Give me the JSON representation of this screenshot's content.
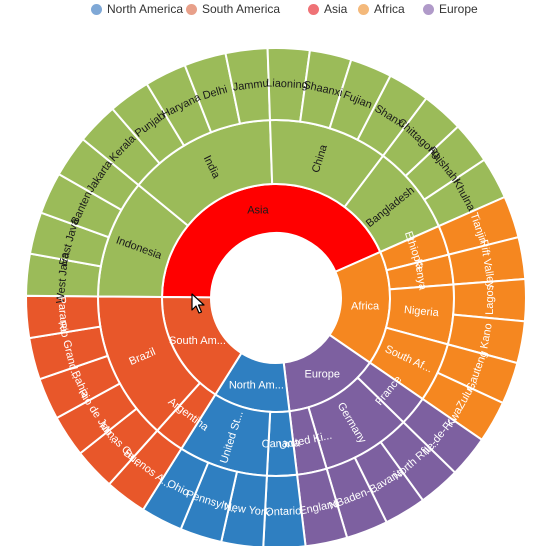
{
  "legend": [
    {
      "label": "North America",
      "color": "#7fa8d6"
    },
    {
      "label": "South America",
      "color": "#e8a08a"
    },
    {
      "label": "Asia",
      "color": "#ef7276"
    },
    {
      "label": "Africa",
      "color": "#f4b97b"
    },
    {
      "label": "Europe",
      "color": "#b09ac9"
    }
  ],
  "chart_data": {
    "type": "sunburst",
    "series": [
      {
        "name": "Asia",
        "color": "#ff0000",
        "display": "Asia",
        "children": [
          {
            "name": "Indonesia",
            "color": "#9bbb59",
            "display": "Indonesia",
            "children": [
              {
                "name": "West Java",
                "display": "West Java",
                "color": "#9bbb59"
              },
              {
                "name": "East Java",
                "display": "East Java",
                "color": "#9bbb59"
              },
              {
                "name": "Banten",
                "display": "Banten",
                "color": "#9bbb59"
              },
              {
                "name": "Jakarta",
                "display": "Jakarta",
                "color": "#9bbb59"
              }
            ]
          },
          {
            "name": "India",
            "color": "#9bbb59",
            "display": "India",
            "children": [
              {
                "name": "Kerala",
                "display": "Kerala",
                "color": "#9bbb59"
              },
              {
                "name": "Punjab",
                "display": "Punjab",
                "color": "#9bbb59"
              },
              {
                "name": "Haryana",
                "display": "Haryana",
                "color": "#9bbb59"
              },
              {
                "name": "Delhi",
                "display": "Delhi",
                "color": "#9bbb59"
              },
              {
                "name": "Jammu",
                "display": "Jammu",
                "color": "#9bbb59"
              }
            ]
          },
          {
            "name": "China",
            "color": "#9bbb59",
            "display": "China",
            "children": [
              {
                "name": "Liaoning",
                "display": "Liaoning",
                "color": "#9bbb59"
              },
              {
                "name": "Shaanxi",
                "display": "Shaanxi",
                "color": "#9bbb59"
              },
              {
                "name": "Fujian",
                "display": "Fujian",
                "color": "#9bbb59"
              },
              {
                "name": "Shanxi",
                "display": "Shanxi",
                "color": "#9bbb59"
              }
            ]
          },
          {
            "name": "Bangladesh",
            "color": "#9bbb59",
            "display": "Bangladesh",
            "children": [
              {
                "name": "Chittagong",
                "display": "Chittagong",
                "color": "#9bbb59"
              },
              {
                "name": "Rajshahi",
                "display": "Rajshahi",
                "color": "#9bbb59"
              },
              {
                "name": "Khulna",
                "display": "Khulna",
                "color": "#9bbb59"
              }
            ]
          }
        ]
      },
      {
        "name": "Africa",
        "color": "#f58720",
        "display": "Africa",
        "children": [
          {
            "name": "Ethiopia",
            "color": "#f58720",
            "display": "Ethiopia",
            "children": [
              {
                "name": "Tianjin",
                "display": "Tianjin",
                "color": "#f58720"
              }
            ]
          },
          {
            "name": "Kenya",
            "color": "#f58720",
            "display": "Kenya",
            "children": [
              {
                "name": "Rift Valley",
                "display": "Rift Valley",
                "color": "#f58720"
              }
            ]
          },
          {
            "name": "Nigeria",
            "color": "#f58720",
            "display": "Nigeria",
            "children": [
              {
                "name": "Lagos",
                "display": "Lagos",
                "color": "#f58720"
              },
              {
                "name": "Kano",
                "display": "Kano",
                "color": "#f58720"
              }
            ]
          },
          {
            "name": "South Africa",
            "color": "#f58720",
            "display": "South Af...",
            "children": [
              {
                "name": "Gauteng",
                "display": "Gauteng",
                "color": "#f58720"
              },
              {
                "name": "KwaZulu-Natal",
                "display": "KwaZulu...",
                "color": "#f58720"
              }
            ]
          }
        ]
      },
      {
        "name": "Europe",
        "color": "#7d60a0",
        "display": "Europe",
        "children": [
          {
            "name": "France",
            "color": "#7d60a0",
            "display": "France",
            "children": [
              {
                "name": "Ile-de-France",
                "display": "Île-de-Fr...",
                "color": "#7d60a0"
              }
            ]
          },
          {
            "name": "Germany",
            "color": "#7d60a0",
            "display": "Germany",
            "children": [
              {
                "name": "North Rhine-Westphalia",
                "display": "North Rhi...",
                "color": "#7d60a0"
              },
              {
                "name": "Bavaria",
                "display": "Bavaria",
                "color": "#7d60a0"
              },
              {
                "name": "Baden-Wurttemberg",
                "display": "NBaden-...",
                "color": "#7d60a0"
              }
            ]
          },
          {
            "name": "United Kingdom",
            "color": "#7d60a0",
            "display": "United Ki...",
            "children": [
              {
                "name": "England",
                "display": "England",
                "color": "#7d60a0"
              }
            ]
          }
        ]
      },
      {
        "name": "North America",
        "color": "#2f7fc1",
        "display": "North Am...",
        "children": [
          {
            "name": "Canada",
            "color": "#2f7fc1",
            "display": "Canada",
            "children": [
              {
                "name": "Ontario",
                "display": "Ontario",
                "color": "#2f7fc1"
              }
            ]
          },
          {
            "name": "United States",
            "color": "#2f7fc1",
            "display": "United St...",
            "children": [
              {
                "name": "New York",
                "display": "New York",
                "color": "#2f7fc1"
              },
              {
                "name": "Pennsylvania",
                "display": "Pennsylv...",
                "color": "#2f7fc1"
              },
              {
                "name": "Ohio",
                "display": "Ohio",
                "color": "#2f7fc1"
              }
            ]
          }
        ]
      },
      {
        "name": "South America",
        "color": "#e8572a",
        "display": "South Am...",
        "children": [
          {
            "name": "Argentina",
            "color": "#e8572a",
            "display": "Argentina",
            "children": [
              {
                "name": "Buenos Aires",
                "display": "Buenos A...",
                "color": "#e8572a"
              }
            ]
          },
          {
            "name": "Brazil",
            "color": "#e8572a",
            "display": "Brazil",
            "children": [
              {
                "name": "Minas Gerais",
                "display": "Minas Ge...",
                "color": "#e8572a"
              },
              {
                "name": "Rio de Janeiro",
                "display": "Rio de Jan...",
                "color": "#e8572a"
              },
              {
                "name": "Bahia",
                "display": "Bahia",
                "color": "#e8572a"
              },
              {
                "name": "Rio Grande do Sul",
                "display": "Rio Grand...",
                "color": "#e8572a"
              },
              {
                "name": "Parana",
                "display": "Parana",
                "color": "#e8572a"
              }
            ]
          }
        ]
      }
    ]
  }
}
